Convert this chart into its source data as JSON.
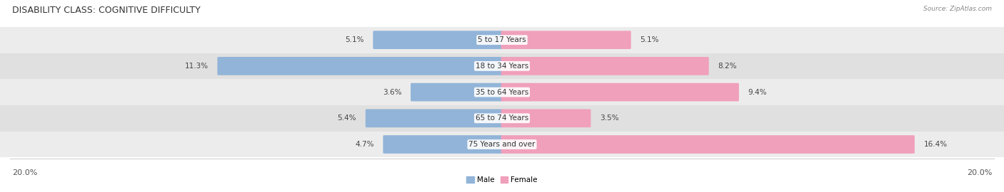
{
  "title": "DISABILITY CLASS: COGNITIVE DIFFICULTY",
  "source_text": "Source: ZipAtlas.com",
  "categories": [
    "5 to 17 Years",
    "18 to 34 Years",
    "35 to 64 Years",
    "65 to 74 Years",
    "75 Years and over"
  ],
  "male_values": [
    5.1,
    11.3,
    3.6,
    5.4,
    4.7
  ],
  "female_values": [
    5.1,
    8.2,
    9.4,
    3.5,
    16.4
  ],
  "x_max": 20.0,
  "male_color": "#92b4d8",
  "female_color": "#f0a0bb",
  "male_label": "Male",
  "female_label": "Female",
  "row_bg_colors": [
    "#ececec",
    "#e0e0e0",
    "#ececec",
    "#e0e0e0",
    "#ececec"
  ],
  "title_fontsize": 9,
  "label_fontsize": 7.5,
  "value_fontsize": 7.5,
  "source_fontsize": 6.5,
  "axis_label_fontsize": 8,
  "x_left_label": "20.0%",
  "x_right_label": "20.0%"
}
